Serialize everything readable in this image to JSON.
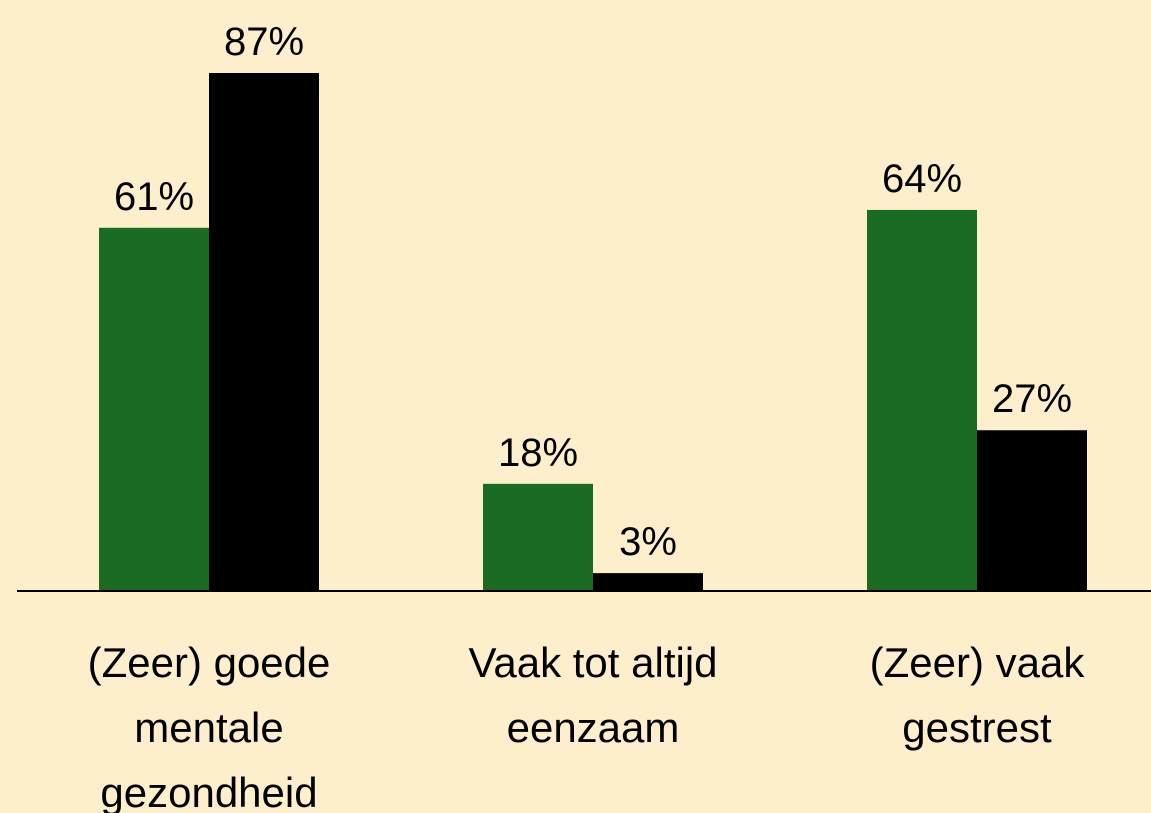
{
  "chart_data": {
    "type": "bar",
    "categories": [
      [
        "(Zeer) goede",
        "mentale",
        "gezondheid"
      ],
      [
        "Vaak tot altijd",
        "eenzaam"
      ],
      [
        "(Zeer) vaak",
        "gestrest"
      ]
    ],
    "series": [
      {
        "color": "#1b6b25",
        "values": [
          61,
          18,
          64
        ],
        "value_labels": [
          "61%",
          "18%",
          "64%"
        ]
      },
      {
        "color": "#000000",
        "values": [
          87,
          3,
          27
        ],
        "value_labels": [
          "87%",
          "3%",
          "27%"
        ]
      }
    ],
    "ylim": [
      0,
      100
    ]
  }
}
